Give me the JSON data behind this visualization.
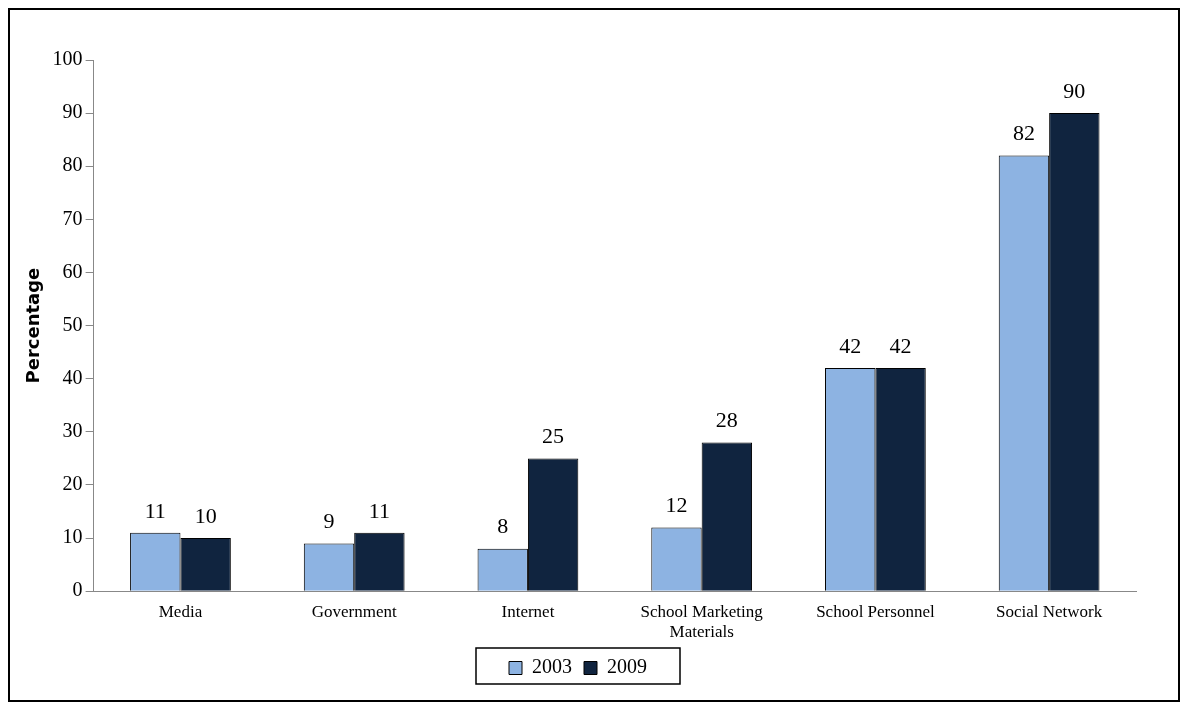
{
  "chart_data": {
    "type": "bar",
    "ylabel": "Percentage",
    "categories": [
      "Media",
      "Government",
      "Internet",
      "School Marketing Materials",
      "School Personnel",
      "Social Network"
    ],
    "series": [
      {
        "name": "2003",
        "color": "#8db3e2",
        "values": [
          11,
          9,
          8,
          12,
          42,
          82
        ]
      },
      {
        "name": "2009",
        "color": "#10243f",
        "values": [
          10,
          11,
          25,
          28,
          42,
          90
        ]
      }
    ],
    "ylim": [
      0,
      100
    ],
    "yticks": [
      0,
      10,
      20,
      30,
      40,
      50,
      60,
      70,
      80,
      90,
      100
    ],
    "grid": false,
    "legend": "bottom",
    "data_labels": true
  }
}
